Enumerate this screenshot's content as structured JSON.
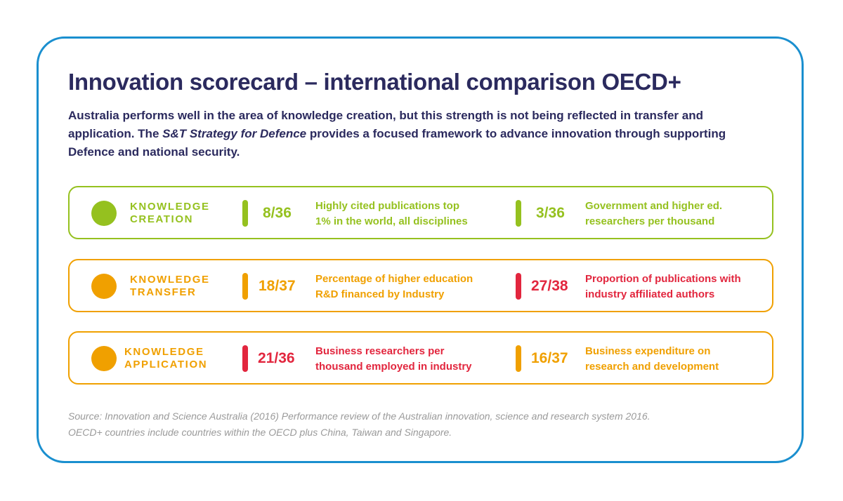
{
  "title": "Innovation scorecard – international comparison OECD+",
  "intro": {
    "part1": "Australia performs well in the area of knowledge creation, but this strength is not being reflected in transfer and application. The ",
    "italic": "S&T Strategy for Defence",
    "part2": " provides a focused framework to advance innovation through supporting Defence and national security."
  },
  "rows": [
    {
      "category_line1": "KNOWLEDGE",
      "category_line2": "CREATION",
      "color": "#95c11f",
      "metrics": [
        {
          "rank": "8/36",
          "desc_line1": "Highly cited publications top",
          "desc_line2": "1% in the world, all disciplines",
          "color": "#95c11f"
        },
        {
          "rank": "3/36",
          "desc_line1": "Government and higher ed.",
          "desc_line2": "researchers per thousand",
          "color": "#95c11f"
        }
      ]
    },
    {
      "category_line1": "KNOWLEDGE",
      "category_line2": "TRANSFER",
      "color": "#f0a000",
      "metrics": [
        {
          "rank": "18/37",
          "desc_line1": "Percentage of higher education",
          "desc_line2": "R&D financed by Industry",
          "color": "#f0a000"
        },
        {
          "rank": "27/38",
          "desc_line1": "Proportion of publications with",
          "desc_line2": "industry affiliated authors",
          "color": "#e2263e"
        }
      ]
    },
    {
      "category_line1": "KNOWLEDGE",
      "category_line2": "APPLICATION",
      "color": "#f0a000",
      "metrics": [
        {
          "rank": "21/36",
          "desc_line1": "Business researchers per",
          "desc_line2": "thousand employed in industry",
          "color": "#e2263e"
        },
        {
          "rank": "16/37",
          "desc_line1": "Business expenditure on",
          "desc_line2": "research and development",
          "color": "#f0a000"
        }
      ]
    }
  ],
  "source": {
    "line1": "Source: Innovation and Science Australia (2016) Performance review of the Australian innovation, science and research system 2016.",
    "line2": "OECD+ countries include countries within the OECD plus China, Taiwan and Singapore."
  }
}
